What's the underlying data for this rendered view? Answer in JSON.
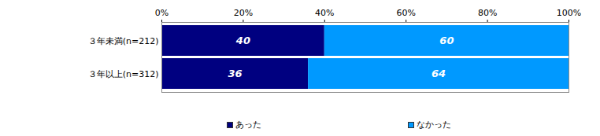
{
  "chart_data": {
    "type": "bar",
    "orientation": "horizontal",
    "stacked": true,
    "categories": [
      "３年未満(n=212)",
      "３年以上(n=312)"
    ],
    "series": [
      {
        "name": "あった",
        "color": "#000080",
        "values": [
          40,
          36
        ]
      },
      {
        "name": "なかった",
        "color": "#0099ff",
        "values": [
          60,
          64
        ]
      }
    ],
    "xlim": [
      0,
      100
    ],
    "xticks": [
      {
        "value": 0,
        "label": "0%"
      },
      {
        "value": 20,
        "label": "20%"
      },
      {
        "value": 40,
        "label": "40%"
      },
      {
        "value": 60,
        "label": "60%"
      },
      {
        "value": 80,
        "label": "80%"
      },
      {
        "value": 100,
        "label": "100%"
      }
    ],
    "grid": false,
    "data_labels": true,
    "legend": "bottom"
  }
}
